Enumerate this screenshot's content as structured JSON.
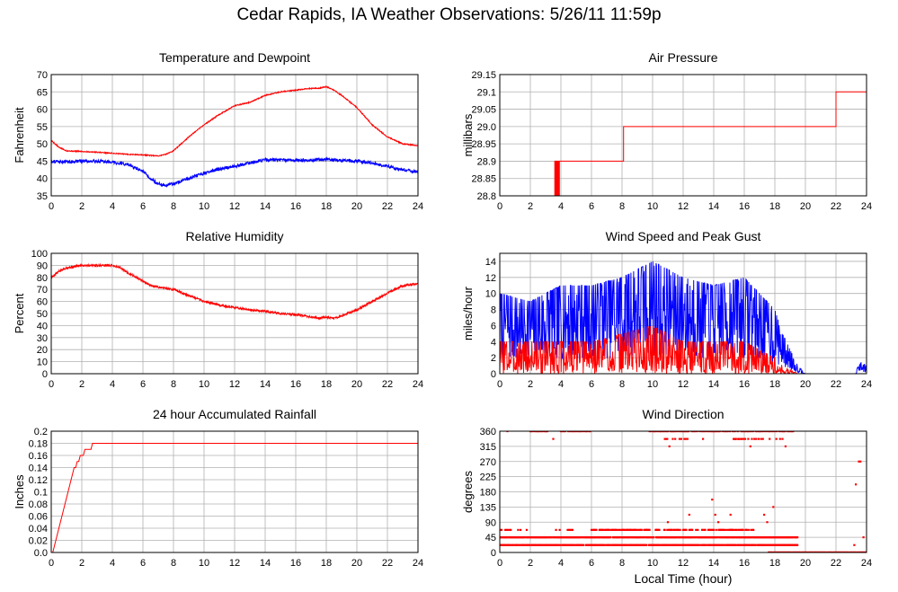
{
  "page_title": "Cedar Rapids, IA Weather Observations: 5/26/11 11:59p",
  "colors": {
    "temperature": "#ff0000",
    "dewpoint": "#0000ff",
    "humidity": "#ff0000",
    "pressure": "#ff0000",
    "wind_speed": "#ff0000",
    "gust": "#0000ff",
    "rain": "#ff0000",
    "direction": "#ff0000",
    "grid": "#b0b0b0"
  },
  "chart_data": [
    {
      "id": "temp",
      "type": "line",
      "title": "Temperature and Dewpoint",
      "ylabel": "Fahrenheit",
      "xlabel": "",
      "xlim": [
        0,
        24
      ],
      "ylim": [
        35,
        70
      ],
      "xticks": [
        "0",
        "2",
        "4",
        "6",
        "8",
        "10",
        "12",
        "14",
        "16",
        "18",
        "20",
        "22",
        "24"
      ],
      "yticks": [
        "35",
        "40",
        "45",
        "50",
        "55",
        "60",
        "65",
        "70"
      ],
      "series": [
        {
          "color": "#ff0000",
          "noise": 0.15,
          "x": [
            0,
            0.5,
            1,
            2,
            3,
            4,
            5,
            6,
            7,
            7.5,
            8,
            8.5,
            9,
            10,
            11,
            12,
            13,
            14,
            15,
            16,
            17,
            17.5,
            18,
            18.5,
            19,
            20,
            21,
            22,
            23,
            24
          ],
          "y": [
            51,
            49,
            48,
            47.8,
            47.6,
            47.3,
            47,
            46.8,
            46.5,
            47,
            48,
            50,
            52,
            55.5,
            58.5,
            61,
            62,
            64,
            65,
            65.5,
            66,
            66,
            66.5,
            65.5,
            64,
            60.5,
            55.5,
            52,
            50,
            49.5
          ]
        },
        {
          "color": "#0000ff",
          "noise": 0.45,
          "x": [
            0,
            1,
            2,
            3,
            4,
            5,
            6,
            6.5,
            7,
            7.5,
            8,
            9,
            10,
            11,
            12,
            13,
            14,
            15,
            16,
            17,
            18,
            19,
            20,
            21,
            22,
            23,
            24
          ],
          "y": [
            45,
            44.8,
            45,
            45,
            44.8,
            44,
            42,
            40,
            38.5,
            38,
            38.5,
            40,
            41.5,
            42.8,
            43.5,
            44.5,
            45.5,
            45.3,
            45.2,
            45.3,
            45.5,
            45.2,
            45,
            44.5,
            43.5,
            42.5,
            42
          ]
        }
      ]
    },
    {
      "id": "pressure",
      "type": "line",
      "title": "Air Pressure",
      "ylabel": "millibars",
      "xlabel": "",
      "xlim": [
        0,
        24
      ],
      "ylim": [
        28.8,
        29.15
      ],
      "xticks": [
        "0",
        "2",
        "4",
        "6",
        "8",
        "10",
        "12",
        "14",
        "16",
        "18",
        "20",
        "22",
        "24"
      ],
      "yticks": [
        "28.8",
        "28.85",
        "28.9",
        "28.95",
        "29.0",
        "29.05",
        "29.1",
        "29.15"
      ],
      "series": [
        {
          "color": "#ff0000",
          "noise": 0,
          "x": [
            0,
            3.6,
            3.6,
            3.65,
            3.65,
            3.7,
            3.7,
            3.75,
            3.75,
            3.8,
            3.8,
            3.85,
            3.85,
            3.9,
            3.9,
            8.1,
            8.1,
            22,
            22,
            24
          ],
          "y": [
            28.8,
            28.8,
            28.9,
            28.9,
            28.8,
            28.8,
            28.9,
            28.9,
            28.8,
            28.8,
            28.9,
            28.9,
            28.8,
            28.8,
            28.9,
            28.9,
            29.0,
            29.0,
            29.1,
            29.1
          ]
        }
      ]
    },
    {
      "id": "humidity",
      "type": "line",
      "title": "Relative Humidity",
      "ylabel": "Percent",
      "xlabel": "",
      "xlim": [
        0,
        24
      ],
      "ylim": [
        0,
        100
      ],
      "xticks": [
        "0",
        "2",
        "4",
        "6",
        "8",
        "10",
        "12",
        "14",
        "16",
        "18",
        "20",
        "22",
        "24"
      ],
      "yticks": [
        "0",
        "10",
        "20",
        "30",
        "40",
        "50",
        "60",
        "70",
        "80",
        "90",
        "100"
      ],
      "series": [
        {
          "color": "#ff0000",
          "noise": 0.9,
          "x": [
            0,
            0.5,
            1,
            2,
            3,
            4,
            4.5,
            5,
            6,
            6.5,
            7,
            8,
            9,
            10,
            11,
            12,
            13,
            14,
            15,
            16,
            17,
            17.5,
            18,
            18.5,
            19,
            20,
            21,
            22,
            23,
            24
          ],
          "y": [
            80,
            85,
            88,
            90,
            90,
            90,
            88,
            84,
            77,
            73,
            72,
            70,
            65,
            60,
            57,
            55,
            53,
            52,
            50,
            49,
            47,
            46,
            47,
            46,
            48,
            53,
            60,
            67,
            73,
            75
          ]
        }
      ]
    },
    {
      "id": "wind",
      "type": "line",
      "title": "Wind Speed and Peak Gust",
      "ylabel": "miles/hour",
      "xlabel": "",
      "xlim": [
        0,
        24
      ],
      "ylim": [
        0,
        15
      ],
      "xticks": [
        "0",
        "2",
        "4",
        "6",
        "8",
        "10",
        "12",
        "14",
        "16",
        "18",
        "20",
        "22",
        "24"
      ],
      "yticks": [
        "0",
        "2",
        "4",
        "6",
        "8",
        "10",
        "12",
        "14"
      ],
      "series": [
        {
          "name": "gust",
          "color": "#0000ff",
          "kind": "spiky",
          "seed": 7,
          "min": 2,
          "max": 12,
          "env_x": [
            0,
            2,
            4,
            6,
            8,
            10,
            12,
            14,
            16,
            17,
            18,
            18.5,
            19,
            19.5,
            20,
            23.3,
            23.5,
            24
          ],
          "env_y": [
            10,
            9,
            11,
            11,
            12,
            14,
            12,
            11,
            12,
            10,
            8,
            5,
            3,
            1,
            0,
            0,
            1.5,
            1
          ]
        },
        {
          "name": "speed",
          "color": "#ff0000",
          "kind": "spiky",
          "seed": 3,
          "min": 0,
          "max": 5,
          "env_x": [
            0,
            2,
            4,
            6,
            8,
            10,
            12,
            14,
            16,
            17,
            18,
            18.5,
            19,
            19.5,
            20,
            24
          ],
          "env_y": [
            4,
            4,
            4,
            4,
            5,
            6,
            4,
            4,
            4,
            3,
            2,
            1,
            0.5,
            0,
            0,
            0
          ]
        }
      ]
    },
    {
      "id": "rain",
      "type": "line",
      "title": "24 hour Accumulated Rainfall",
      "ylabel": "Inches",
      "xlabel": "",
      "xlim": [
        0,
        24
      ],
      "ylim": [
        0,
        0.2
      ],
      "xticks": [
        "0",
        "2",
        "4",
        "6",
        "8",
        "10",
        "12",
        "14",
        "16",
        "18",
        "20",
        "22",
        "24"
      ],
      "yticks": [
        "0.0",
        "0.02",
        "0.04",
        "0.06",
        "0.08",
        "0.1",
        "0.12",
        "0.14",
        "0.16",
        "0.18",
        "0.2"
      ],
      "series": [
        {
          "color": "#ff0000",
          "noise": 0,
          "x": [
            0,
            0.1,
            0.2,
            0.3,
            0.4,
            0.5,
            0.6,
            0.7,
            0.8,
            0.9,
            1.0,
            1.1,
            1.2,
            1.3,
            1.4,
            1.5,
            1.6,
            1.7,
            1.8,
            1.9,
            2.0,
            2.1,
            2.2,
            2.3,
            2.4,
            2.5,
            2.6,
            2.7,
            2.8,
            24
          ],
          "y": [
            0,
            0,
            0.01,
            0.02,
            0.03,
            0.04,
            0.05,
            0.06,
            0.07,
            0.08,
            0.09,
            0.1,
            0.11,
            0.12,
            0.13,
            0.14,
            0.14,
            0.15,
            0.15,
            0.16,
            0.16,
            0.16,
            0.17,
            0.17,
            0.17,
            0.17,
            0.17,
            0.18,
            0.18,
            0.18
          ]
        }
      ]
    },
    {
      "id": "direction",
      "type": "scatter",
      "title": "Wind Direction",
      "ylabel": "degrees",
      "xlabel": "Local Time (hour)",
      "xlim": [
        0,
        24
      ],
      "ylim": [
        0,
        360
      ],
      "xticks": [
        "0",
        "2",
        "4",
        "6",
        "8",
        "10",
        "12",
        "14",
        "16",
        "18",
        "20",
        "22",
        "24"
      ],
      "yticks": [
        "0",
        "45",
        "90",
        "135",
        "180",
        "225",
        "270",
        "315",
        "360"
      ],
      "series": [
        {
          "color": "#ff0000",
          "bands": [
            {
              "y": 360,
              "from": 2.0,
              "to": 3.3,
              "density": 0.6
            },
            {
              "y": 360,
              "from": 4.0,
              "to": 6.0,
              "density": 0.5
            },
            {
              "y": 360,
              "from": 9.8,
              "to": 19.2,
              "density": 0.65
            },
            {
              "y": 45,
              "from": 0,
              "to": 19.5,
              "density": 0.9
            },
            {
              "y": 22,
              "from": 0,
              "to": 19.5,
              "density": 0.8
            },
            {
              "y": 67,
              "from": 0,
              "to": 2.0,
              "density": 0.25
            },
            {
              "y": 67,
              "from": 3.6,
              "to": 4.8,
              "density": 0.3
            },
            {
              "y": 67,
              "from": 6.0,
              "to": 9.8,
              "density": 0.6
            },
            {
              "y": 67,
              "from": 10.0,
              "to": 16.6,
              "density": 0.5
            },
            {
              "y": 0,
              "from": 17.6,
              "to": 24,
              "density": 0.95
            },
            {
              "y": 337,
              "from": 10.8,
              "to": 12.6,
              "density": 0.3
            },
            {
              "y": 337,
              "from": 15.3,
              "to": 18.6,
              "density": 0.25
            }
          ],
          "points": [
            [
              0.5,
              360
            ],
            [
              3.5,
              337
            ],
            [
              11.1,
              315
            ],
            [
              12.4,
              112
            ],
            [
              13.3,
              337
            ],
            [
              13.9,
              157
            ],
            [
              14.1,
              112
            ],
            [
              14.3,
              90
            ],
            [
              15.1,
              112
            ],
            [
              15.6,
              337
            ],
            [
              16.4,
              315
            ],
            [
              17.3,
              112
            ],
            [
              17.5,
              90
            ],
            [
              17.6,
              0
            ],
            [
              17.9,
              135
            ],
            [
              18.7,
              315
            ],
            [
              23.3,
              202
            ],
            [
              23.5,
              270
            ],
            [
              23.6,
              270
            ],
            [
              23.2,
              22
            ],
            [
              23.8,
              45
            ],
            [
              11.0,
              90
            ],
            [
              7.2,
              45
            ],
            [
              9.0,
              22
            ]
          ]
        }
      ]
    }
  ]
}
